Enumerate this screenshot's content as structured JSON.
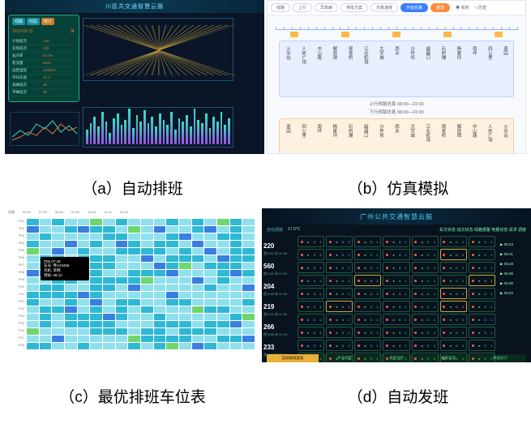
{
  "captions": {
    "a": "（a）自动排班",
    "b": "（b）仿真模拟",
    "c": "（c）最优排班车位表",
    "d": "（d）自动发班"
  },
  "panel_a": {
    "title": "川區共交通智慧云腦",
    "popup": {
      "chips": [
        "线路",
        "时段"
      ],
      "chip_orange": "统计",
      "date": "2019-08-15",
      "rows": [
        {
          "k": "计划班次",
          "v": "128"
        },
        {
          "k": "实际班次",
          "v": "126"
        },
        {
          "k": "准点率",
          "v": "94.3%"
        },
        {
          "k": "客流量",
          "v": "8520"
        },
        {
          "k": "运营里程",
          "v": "1245km"
        },
        {
          "k": "平均车速",
          "v": "22.4"
        },
        {
          "k": "高峰班次",
          "v": "46"
        },
        {
          "k": "平峰班次",
          "v": "80"
        }
      ]
    },
    "bars": [
      18,
      26,
      34,
      22,
      40,
      28,
      14,
      32,
      38,
      24,
      30,
      44,
      20,
      36,
      28,
      42,
      26,
      34,
      22,
      38,
      30,
      24,
      40,
      18,
      32,
      28,
      36,
      22,
      44,
      30,
      26,
      38,
      20,
      34,
      28,
      40,
      24,
      32
    ],
    "colors": {
      "bg": "#0a1628",
      "accent": "#1fae8a",
      "frame": "#1a5570",
      "orange": "#d07b2a"
    }
  },
  "panel_b": {
    "selectors": [
      "线路",
      "上行",
      "早高峰",
      "排班方案",
      "仿真速度"
    ],
    "btn_blue": "开始仿真",
    "btn_orange": "重置",
    "radios": [
      "实时",
      "历史"
    ],
    "route_up_title": "上行线路仿真 08:00—22:00",
    "route_dn_title": "下行线路仿真 08:00—22:00",
    "stops_up": [
      "火车站",
      "人民广场",
      "中山路",
      "解放碑",
      "观音桥",
      "江北机场",
      "大学城",
      "西永",
      "沙坪坝",
      "磁器口",
      "石桥铺",
      "杨家坪",
      "南坪",
      "四公里",
      "茶园"
    ],
    "stops_dn": [
      "茶园",
      "四公里",
      "南坪",
      "杨家坪",
      "石桥铺",
      "磁器口",
      "沙坪坝",
      "西永",
      "大学城",
      "江北机场",
      "观音桥",
      "解放碑",
      "中山路",
      "人民广场",
      "火车站"
    ],
    "colors": {
      "bg": "#f7f9fc",
      "up": "#e8efff",
      "dn": "#fff1e0",
      "bus": "#ffb74d",
      "line": "#8fb3ff"
    }
  },
  "panel_c": {
    "header": [
      "线路",
      "06:00",
      "07:00",
      "08:00",
      "09:00",
      "10:00",
      "11:00",
      "12:00"
    ],
    "row_labels": [
      "P01",
      "P02",
      "P03",
      "P04",
      "P05",
      "P06",
      "P07",
      "P08",
      "P09",
      "P10",
      "P11",
      "P12",
      "P13",
      "P14",
      "P15",
      "P16",
      "P17",
      "P18"
    ],
    "tooltip": {
      "title": "P06 07:45",
      "lines": [
        "车号: 粤A23456",
        "司机: 李明",
        "到站: 08:12"
      ]
    },
    "palette": {
      "cyan": "#2fb8d4",
      "blue": "#3a7fe0",
      "green": "#6fd66f",
      "lcyan": "#8fe0ec",
      "white": "#ffffff",
      "border": "#d0e3ea"
    },
    "cells": [
      [
        1,
        1,
        2,
        1,
        1,
        3,
        1,
        2,
        1,
        1,
        1,
        2,
        1,
        1,
        1,
        3,
        1,
        1
      ],
      [
        2,
        1,
        1,
        1,
        2,
        1,
        1,
        1,
        3,
        1,
        2,
        1,
        1,
        1,
        2,
        1,
        1,
        1
      ],
      [
        1,
        2,
        1,
        1,
        1,
        1,
        2,
        1,
        1,
        1,
        1,
        1,
        2,
        1,
        1,
        1,
        3,
        1
      ],
      [
        1,
        1,
        1,
        2,
        1,
        1,
        1,
        2,
        1,
        1,
        3,
        1,
        1,
        2,
        1,
        1,
        1,
        1
      ],
      [
        3,
        1,
        2,
        1,
        1,
        1,
        1,
        1,
        2,
        1,
        1,
        1,
        1,
        1,
        2,
        1,
        1,
        2
      ],
      [
        1,
        1,
        1,
        1,
        2,
        1,
        3,
        1,
        1,
        2,
        1,
        1,
        1,
        1,
        1,
        2,
        1,
        1
      ],
      [
        1,
        2,
        1,
        1,
        1,
        1,
        1,
        1,
        1,
        1,
        2,
        1,
        3,
        1,
        1,
        1,
        1,
        1
      ],
      [
        2,
        1,
        1,
        3,
        1,
        2,
        1,
        1,
        1,
        1,
        1,
        2,
        1,
        1,
        1,
        1,
        2,
        1
      ],
      [
        1,
        1,
        1,
        1,
        1,
        1,
        2,
        1,
        1,
        3,
        1,
        1,
        1,
        2,
        1,
        1,
        1,
        1
      ],
      [
        1,
        1,
        2,
        1,
        1,
        1,
        1,
        1,
        2,
        1,
        1,
        1,
        1,
        1,
        3,
        1,
        1,
        2
      ],
      [
        1,
        3,
        1,
        1,
        2,
        1,
        1,
        1,
        1,
        1,
        1,
        2,
        1,
        1,
        1,
        1,
        1,
        1
      ],
      [
        2,
        1,
        1,
        1,
        1,
        2,
        1,
        3,
        1,
        1,
        1,
        1,
        2,
        1,
        1,
        1,
        1,
        1
      ],
      [
        1,
        1,
        1,
        2,
        1,
        1,
        1,
        1,
        1,
        2,
        1,
        1,
        1,
        3,
        1,
        2,
        1,
        1
      ],
      [
        1,
        1,
        1,
        1,
        1,
        1,
        2,
        1,
        1,
        1,
        2,
        1,
        1,
        1,
        1,
        1,
        1,
        3
      ],
      [
        1,
        2,
        1,
        1,
        3,
        1,
        1,
        1,
        1,
        1,
        1,
        1,
        2,
        1,
        1,
        1,
        2,
        1
      ],
      [
        3,
        1,
        1,
        1,
        1,
        1,
        1,
        2,
        1,
        1,
        1,
        1,
        1,
        1,
        2,
        1,
        1,
        1
      ],
      [
        1,
        1,
        2,
        1,
        1,
        1,
        1,
        1,
        3,
        1,
        2,
        1,
        1,
        1,
        1,
        1,
        1,
        2
      ],
      [
        1,
        1,
        1,
        1,
        2,
        1,
        1,
        1,
        1,
        1,
        1,
        3,
        1,
        2,
        1,
        1,
        1,
        1
      ]
    ]
  },
  "panel_d": {
    "title": "广州公共交通智慧云脑",
    "tabs": [
      "自动调度"
    ],
    "weather": "17.0°C",
    "status_labels": [
      "车次状态",
      "班次状态",
      "线路报警",
      "电量状态",
      "请求",
      "调度"
    ],
    "routes": [
      {
        "no": "220",
        "sub": "首 5:50 末 22:30",
        "right": "06:23"
      },
      {
        "no": "560",
        "sub": "首 6:00 末 22:00",
        "right": "06:31"
      },
      {
        "no": "204",
        "sub": "首 5:45 末 22:45",
        "right": "06:28"
      },
      {
        "no": "219",
        "sub": "首 6:10 末 21:50",
        "right": "06:35"
      },
      {
        "no": "266",
        "sub": "首 5:55 末 22:15",
        "right": "06:30"
      },
      {
        "no": "233",
        "sub": "首 6:05 末 22:30",
        "right": "06:33"
      }
    ],
    "foot": [
      "自动排班复核",
      "手动调度",
      "发班监控",
      "报警处理",
      "数据统计"
    ],
    "foot_active": 0,
    "colors": {
      "bg": "#08131f",
      "cell": "#1e5a3e",
      "cellY": "#caa83a",
      "text": "#4fe08a",
      "red": "#ff5a3d",
      "title": "#44d3ff"
    }
  }
}
